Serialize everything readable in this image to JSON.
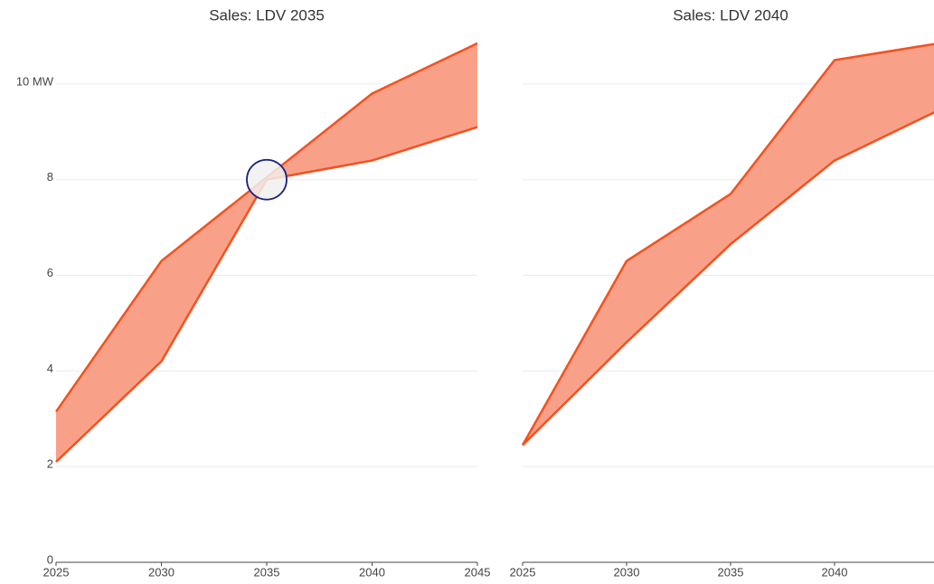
{
  "chart_data": [
    {
      "type": "band",
      "title": "Sales: LDV 2035",
      "x": [
        2025,
        2030,
        2035,
        2040,
        2045
      ],
      "series": [
        {
          "color": "#f4511e",
          "values": [
            2.1,
            4.2,
            8.0,
            8.4,
            9.1
          ]
        },
        {
          "color": "#f4511e",
          "values": [
            3.15,
            6.3,
            8.05,
            9.8,
            10.85
          ]
        }
      ],
      "fill": "#f9a089",
      "xlim": [
        2025,
        2045
      ],
      "xticks": [
        2025,
        2030,
        2035,
        2040,
        2045
      ],
      "ylim": [
        0,
        11
      ],
      "yticks": [
        0,
        2,
        4,
        6,
        8,
        {
          "value": 10,
          "label": "10 MW"
        }
      ],
      "show_ytick_labels": true,
      "grid": true,
      "highlight": {
        "x": 2035,
        "y": 8,
        "color": "#1a237e"
      }
    },
    {
      "type": "band",
      "title": "Sales: LDV 2040",
      "x": [
        2025,
        2030,
        2035,
        2040,
        2045
      ],
      "series": [
        {
          "color": "#f4511e",
          "values": [
            2.45,
            4.6,
            6.65,
            8.4,
            9.45
          ]
        },
        {
          "color": "#f4511e",
          "values": [
            2.45,
            6.3,
            7.7,
            10.5,
            10.85
          ]
        }
      ],
      "fill": "#f9a089",
      "xlim": [
        2025,
        2045
      ],
      "xticks": [
        2025,
        2030,
        2035,
        2040
      ],
      "ylim": [
        0,
        11
      ],
      "yticks": [
        0,
        2,
        4,
        6,
        8,
        10
      ],
      "show_ytick_labels": false,
      "grid": true
    }
  ]
}
